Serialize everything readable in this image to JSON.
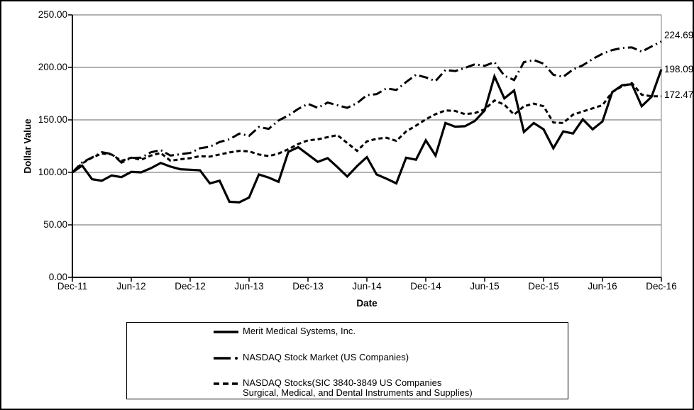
{
  "figure": {
    "kind": "stock-performance-graph",
    "background": "#ffffff",
    "border_color": "#000000",
    "line_color": "#000000",
    "gridline_color": "#666666"
  },
  "chart_data": {
    "type": "line",
    "title": "",
    "xlabel": "Date",
    "ylabel": "Dollar Value",
    "ylim": [
      0,
      250
    ],
    "grid": "horizontal",
    "legend_position": "bottom-box",
    "y_ticks": [
      "250.00",
      "200.00",
      "150.00",
      "100.00",
      "50.00",
      "0.00"
    ],
    "y_tick_values": [
      250,
      200,
      150,
      100,
      50,
      0
    ],
    "x_ticks": [
      "Dec-11",
      "Jun-12",
      "Dec-12",
      "Jun-13",
      "Dec-13",
      "Jun-14",
      "Dec-14",
      "Jun-15",
      "Dec-15",
      "Jun-16",
      "Dec-16"
    ],
    "x_tick_month_indexes": [
      0,
      6,
      12,
      18,
      24,
      30,
      36,
      42,
      48,
      54,
      60
    ],
    "x_unit": "monthly, Dec-2011 through Dec-2016, indexed to 100 at Dec-11",
    "end_labels": [
      {
        "text": "224.69",
        "value": 224.69
      },
      {
        "text": "198.09",
        "value": 198.09
      },
      {
        "text": "172.47",
        "value": 172.47
      }
    ],
    "series": [
      {
        "name": "Merit Medical Systems, Inc.",
        "style": "solid",
        "color": "#000000",
        "final_value": 198.09,
        "values": [
          100,
          106.5,
          93.5,
          92,
          97,
          95.5,
          100.5,
          100,
          104,
          109,
          105.5,
          103,
          102.5,
          102,
          89.5,
          92,
          72,
          71.5,
          76,
          98,
          95,
          91,
          119.5,
          124,
          117,
          110,
          113.5,
          105,
          96,
          106,
          114.5,
          98,
          94,
          89.5,
          114,
          112,
          130.5,
          116,
          147,
          143.5,
          144,
          149,
          159,
          191.5,
          170.5,
          178,
          138.5,
          147,
          141,
          123,
          139,
          137,
          150.5,
          141,
          148.5,
          176.5,
          183,
          184,
          163,
          172,
          198.09
        ]
      },
      {
        "name": "NASDAQ Stock Market (US Companies)",
        "style": "long-dash-dot",
        "color": "#000000",
        "final_value": 224.69,
        "values": [
          100,
          109.5,
          114.2,
          119.2,
          117.6,
          109.3,
          113.7,
          114,
          119.1,
          121.2,
          116,
          117.3,
          118.5,
          123,
          124.4,
          128.9,
          131.5,
          136.9,
          134.8,
          143.2,
          141.5,
          149.4,
          154.2,
          160.4,
          165.3,
          161.5,
          166.5,
          164,
          161.5,
          166,
          173.5,
          174.5,
          180,
          178.5,
          186,
          193,
          190.5,
          187,
          197.5,
          196.5,
          199.5,
          203,
          201.5,
          205,
          192,
          188,
          205,
          207,
          203.5,
          193,
          191,
          198,
          202,
          208,
          213,
          216.5,
          218.5,
          219,
          215,
          220,
          224.69
        ]
      },
      {
        "name": "NASDAQ Stocks(SIC 3840-3849 US Companies Surgical, Medical, and Dental Instruments and Supplies)",
        "style": "short-dash",
        "color": "#000000",
        "final_value": 172.47,
        "values": [
          100,
          108.5,
          114,
          118,
          117,
          111,
          114,
          112,
          116,
          118.5,
          111,
          112.5,
          113.5,
          115.5,
          115,
          117,
          119,
          120.5,
          120,
          117,
          115.5,
          118,
          122,
          127,
          130.5,
          131.5,
          133.5,
          135.5,
          128,
          120.5,
          129.5,
          132,
          133,
          130,
          139,
          144.5,
          150.5,
          155.5,
          159,
          158.5,
          155.5,
          156.5,
          160,
          168.5,
          164.5,
          155,
          163,
          165.5,
          163,
          147.5,
          147,
          155,
          158,
          161,
          164,
          176.5,
          182,
          185,
          174,
          172.5,
          172.47
        ]
      }
    ]
  },
  "legend": {
    "entries": [
      {
        "lines": [
          "Merit Medical Systems, Inc."
        ],
        "style": "solid"
      },
      {
        "lines": [
          "NASDAQ Stock Market (US Companies)"
        ],
        "style": "long-dash-dot"
      },
      {
        "lines": [
          "NASDAQ Stocks(SIC 3840-3849 US Companies",
          "Surgical, Medical, and Dental Instruments and Supplies)"
        ],
        "style": "short-dash"
      }
    ]
  }
}
